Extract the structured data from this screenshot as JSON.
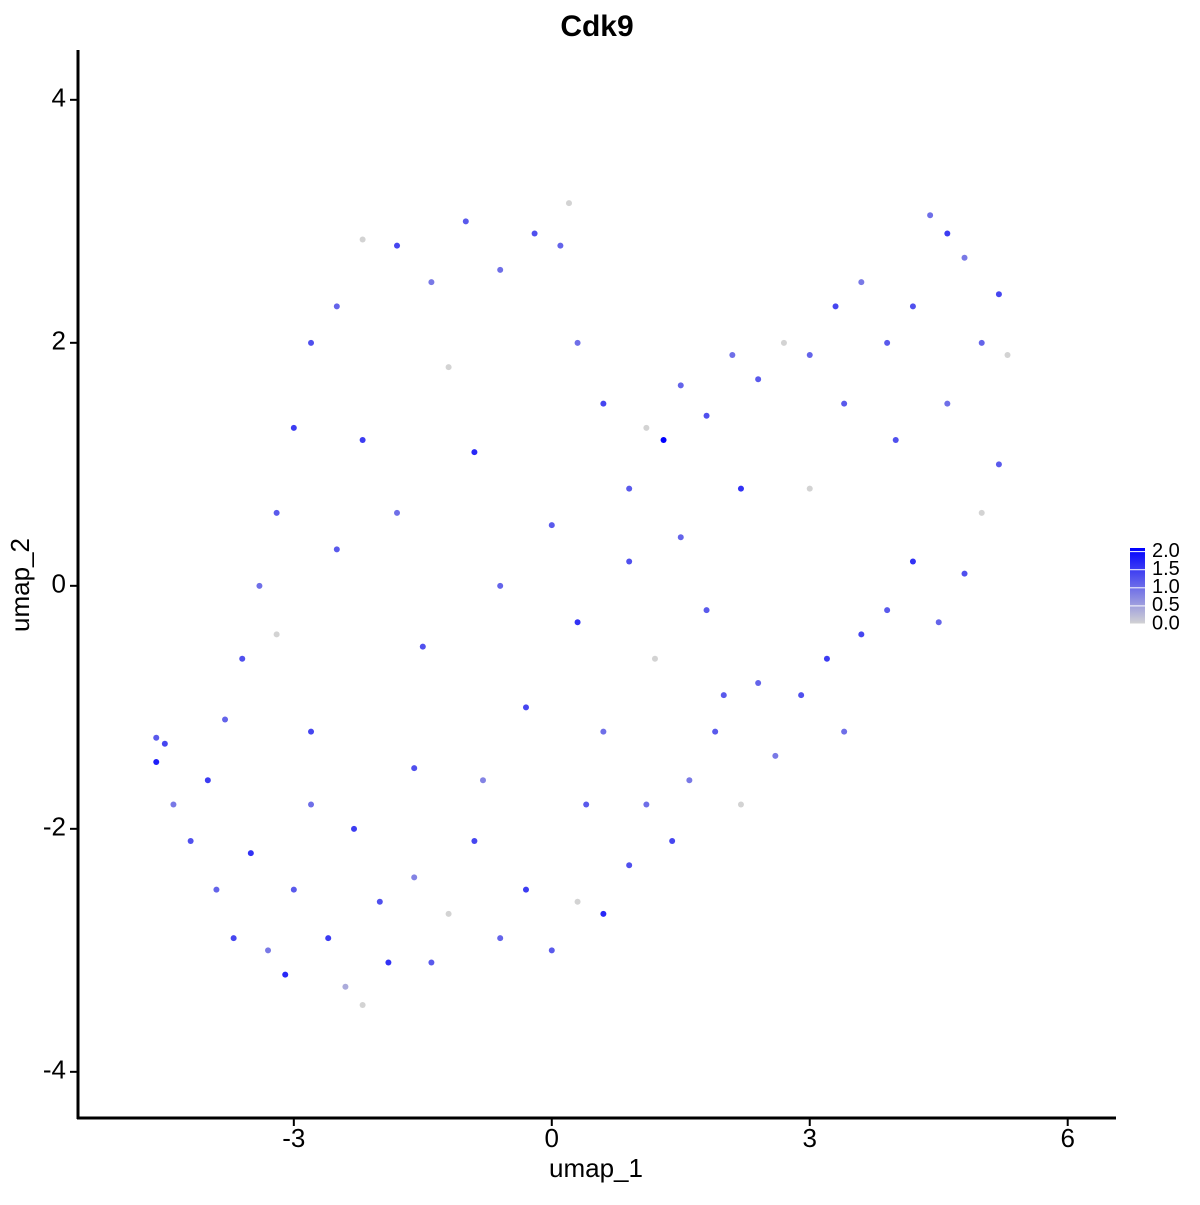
{
  "chart_data": {
    "type": "scatter",
    "title": "Cdk9",
    "x_label": "umap_1",
    "y_label": "umap_2",
    "x": [
      -4.6,
      -4.6,
      -4.4,
      -4.2,
      -4.0,
      -3.9,
      -3.7,
      -3.5,
      -3.3,
      -3.1,
      -3.0,
      -2.8,
      -2.6,
      -2.4,
      -2.2,
      -2.0,
      -1.9,
      -1.6,
      -1.4,
      -1.2,
      -0.9,
      -0.6,
      -0.3,
      0.0,
      0.3,
      0.6,
      0.9,
      1.1,
      1.4,
      1.6,
      1.9,
      2.2,
      2.4,
      2.6,
      2.9,
      3.2,
      3.4,
      3.6,
      3.9,
      4.2,
      4.5,
      4.8,
      5.0,
      5.2,
      5.3,
      5.2,
      5.0,
      4.8,
      4.6,
      4.4,
      4.2,
      3.9,
      3.6,
      3.3,
      3.0,
      2.7,
      2.4,
      2.1,
      1.8,
      1.5,
      1.3,
      1.1,
      0.9,
      0.6,
      0.3,
      0.1,
      0.2,
      -0.2,
      -0.6,
      -1.0,
      -1.4,
      -1.8,
      -2.2,
      -2.5,
      -2.8,
      -3.0,
      -3.2,
      -3.4,
      -3.6,
      -3.8,
      -3.2,
      -2.8,
      -2.5,
      -2.2,
      -1.8,
      -1.5,
      -1.2,
      -0.9,
      -0.6,
      -0.3,
      0.0,
      0.3,
      0.6,
      0.9,
      1.2,
      1.5,
      1.8,
      2.2,
      2.0,
      -1.6,
      -2.3,
      -0.8,
      0.4,
      3.0,
      4.0,
      3.4,
      4.6,
      -4.5
    ],
    "y": [
      -1.25,
      -1.45,
      -1.8,
      -2.1,
      -1.6,
      -2.5,
      -2.9,
      -2.2,
      -3.0,
      -3.2,
      -2.5,
      -1.8,
      -2.9,
      -3.3,
      -3.45,
      -2.6,
      -3.1,
      -2.4,
      -3.1,
      -2.7,
      -2.1,
      -2.9,
      -2.5,
      -3.0,
      -2.6,
      -2.7,
      -2.3,
      -1.8,
      -2.1,
      -1.6,
      -1.2,
      -1.8,
      -0.8,
      -1.4,
      -0.9,
      -0.6,
      -1.2,
      -0.4,
      -0.2,
      0.2,
      -0.3,
      0.1,
      0.6,
      1.0,
      1.9,
      2.4,
      2.0,
      2.7,
      2.9,
      3.05,
      2.3,
      2.0,
      2.5,
      2.3,
      1.9,
      2.0,
      1.7,
      1.9,
      1.4,
      1.65,
      1.2,
      1.3,
      0.8,
      1.5,
      2.0,
      2.8,
      3.15,
      2.9,
      2.6,
      3.0,
      2.5,
      2.8,
      2.85,
      2.3,
      2.0,
      1.3,
      0.6,
      0.0,
      -0.6,
      -1.1,
      -0.4,
      -1.2,
      0.3,
      1.2,
      0.6,
      -0.5,
      1.8,
      1.1,
      0.0,
      -1.0,
      0.5,
      -0.3,
      -1.2,
      0.2,
      -0.6,
      0.4,
      -0.2,
      0.8,
      -0.9,
      -1.5,
      -2.0,
      -1.6,
      -1.8,
      0.8,
      1.2,
      1.5,
      1.5,
      -1.3
    ],
    "values": [
      1.2,
      1.8,
      0.9,
      1.3,
      1.5,
      1.1,
      1.4,
      1.6,
      0.9,
      1.7,
      1.2,
      1.0,
      1.5,
      0.4,
      0.0,
      1.3,
      1.6,
      0.8,
      1.2,
      0.0,
      1.4,
      1.1,
      1.5,
      1.2,
      0.0,
      1.7,
      1.3,
      1.0,
      1.4,
      0.9,
      1.2,
      0.0,
      1.1,
      0.9,
      1.3,
      1.5,
      1.0,
      1.4,
      1.2,
      1.6,
      1.1,
      1.3,
      0.0,
      1.2,
      0.0,
      1.4,
      1.1,
      0.9,
      1.5,
      1.0,
      1.3,
      1.2,
      0.9,
      1.4,
      1.1,
      0.0,
      1.2,
      1.0,
      1.3,
      1.1,
      2.1,
      0.0,
      1.2,
      1.4,
      1.0,
      1.1,
      0.0,
      1.3,
      1.0,
      1.2,
      0.9,
      1.4,
      0.0,
      1.1,
      1.3,
      1.5,
      1.2,
      1.0,
      1.3,
      1.1,
      0.0,
      1.4,
      1.2,
      1.5,
      1.0,
      1.3,
      0.0,
      1.7,
      1.1,
      1.4,
      1.2,
      1.6,
      1.0,
      1.3,
      0.0,
      1.1,
      1.2,
      1.6,
      1.2,
      1.3,
      1.5,
      0.8,
      1.2,
      0.0,
      1.3,
      1.2,
      1.0,
      1.4
    ],
    "xlim": [
      -5.51,
      6.55
    ],
    "xticks": [
      -3,
      0,
      3,
      6
    ],
    "ylim": [
      -4.38,
      4.41
    ],
    "yticks": [
      -4,
      -2,
      0,
      2,
      4
    ],
    "color_scale": {
      "low": "#d3d3d3",
      "high": "#0000ff",
      "lim": [
        0,
        2.1
      ],
      "ticks": [
        {
          "value": 0,
          "label": "0.0"
        },
        {
          "value": 0.5,
          "label": "0.5"
        },
        {
          "value": 1,
          "label": "1.0"
        },
        {
          "value": 1.5,
          "label": "1.5"
        },
        {
          "value": 2,
          "label": "2.0"
        }
      ]
    }
  }
}
